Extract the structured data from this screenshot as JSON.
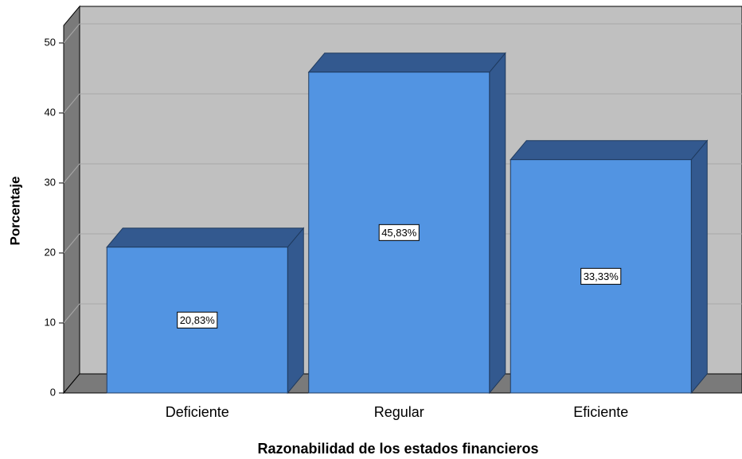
{
  "chart_data": {
    "type": "bar",
    "categories": [
      "Deficiente",
      "Regular",
      "Eficiente"
    ],
    "values": [
      20.83,
      45.83,
      33.33
    ],
    "value_labels": [
      "20,83%",
      "45,83%",
      "33,33%"
    ],
    "color": "#5294e2",
    "ylim": [
      0,
      52.5
    ],
    "yticks": [
      0,
      10,
      20,
      30,
      40,
      50
    ],
    "grid": true,
    "xlabel": "Razonabilidad de los estados financieros",
    "ylabel": "Porcentaje"
  }
}
